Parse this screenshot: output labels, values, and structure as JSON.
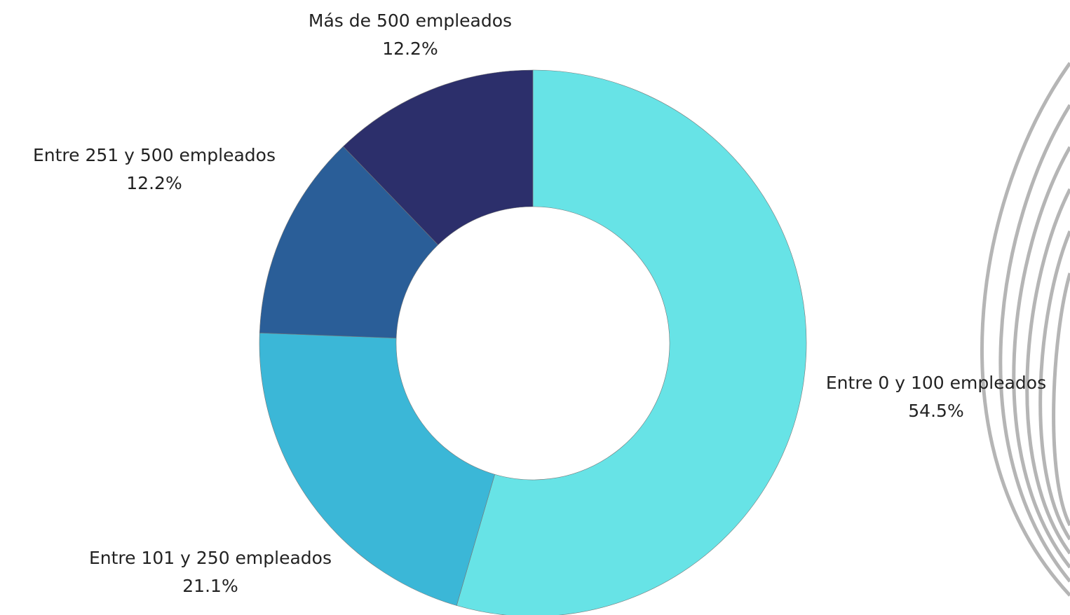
{
  "chart_data": {
    "type": "donut",
    "categories": [
      "Entre 0 y 100 empleados",
      "Entre 101 y 250 empleados",
      "Entre 251 y 500 empleados",
      "Más de 500 empleados"
    ],
    "values": [
      54.5,
      21.1,
      12.2,
      12.2
    ],
    "value_labels": [
      "54.5%",
      "21.1%",
      "12.2%",
      "12.2%"
    ],
    "colors": [
      "#67e3e6",
      "#3bb7d7",
      "#2a5e98",
      "#2c2f6b"
    ]
  }
}
